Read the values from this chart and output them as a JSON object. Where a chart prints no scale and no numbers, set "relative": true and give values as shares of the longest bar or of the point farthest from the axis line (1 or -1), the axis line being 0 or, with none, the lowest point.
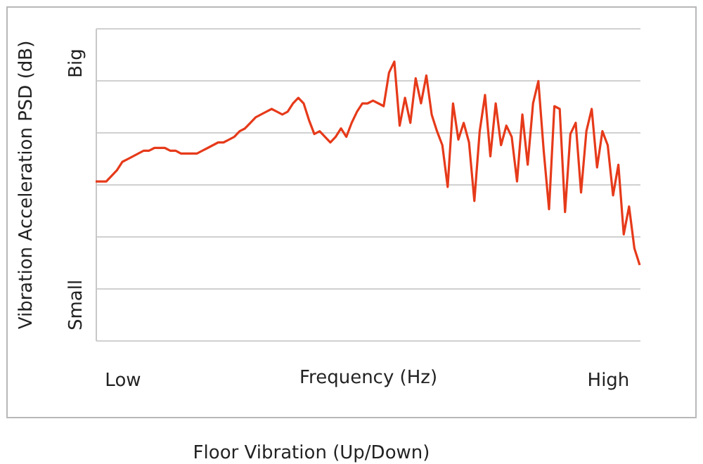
{
  "chart_data": {
    "type": "line",
    "relative": true,
    "xlabel": "Frequency (Hz)",
    "ylabel": "Vibration Acceleration PSD (dB)",
    "categories": [
      null,
      null,
      null,
      null,
      null,
      "Low",
      null,
      null,
      null,
      null,
      null,
      null,
      null,
      null,
      null,
      null,
      null,
      null,
      null,
      null,
      null,
      null,
      null,
      null,
      null,
      null,
      null,
      null,
      null,
      null,
      null,
      null,
      null,
      null,
      null,
      null,
      null,
      null,
      null,
      null,
      null,
      null,
      null,
      null,
      null,
      null,
      null,
      null,
      null,
      null,
      null,
      null,
      null,
      null,
      null,
      null,
      null,
      null,
      null,
      null,
      null,
      null,
      null,
      null,
      null,
      null,
      null,
      null,
      null,
      null,
      null,
      null,
      null,
      null,
      null,
      null,
      null,
      null,
      null,
      null,
      null,
      null,
      null,
      null,
      null,
      null,
      null,
      null,
      null,
      null,
      null,
      null,
      null,
      null,
      null,
      null,
      "High",
      null,
      null,
      null,
      null,
      null,
      null
    ],
    "annotations": [
      "Big",
      "Small",
      "Floor Vibration (Up/Down)"
    ],
    "grid": "y",
    "legend": false,
    "marker": "none",
    "line_style": "solid",
    "series": [
      {
        "color": "#e63a1a",
        "values": [
          0.57,
          0.57,
          0.57,
          0.59,
          0.61,
          0.64,
          0.65,
          0.66,
          0.67,
          0.68,
          0.68,
          0.69,
          0.69,
          0.69,
          0.68,
          0.68,
          0.67,
          0.67,
          0.67,
          0.67,
          0.68,
          0.69,
          0.7,
          0.71,
          0.71,
          0.72,
          0.73,
          0.75,
          0.76,
          0.78,
          0.8,
          0.81,
          0.82,
          0.83,
          0.82,
          0.81,
          0.82,
          0.85,
          0.87,
          0.85,
          0.79,
          0.74,
          0.75,
          0.73,
          0.71,
          0.73,
          0.76,
          0.73,
          0.78,
          0.82,
          0.85,
          0.85,
          0.86,
          0.85,
          0.84,
          0.96,
          1.0,
          0.77,
          0.87,
          0.78,
          0.94,
          0.85,
          0.95,
          0.81,
          0.75,
          0.7,
          0.55,
          0.85,
          0.72,
          0.78,
          0.71,
          0.5,
          0.75,
          0.88,
          0.66,
          0.85,
          0.7,
          0.77,
          0.73,
          0.57,
          0.81,
          0.63,
          0.85,
          0.93,
          0.68,
          0.47,
          0.84,
          0.83,
          0.46,
          0.74,
          0.78,
          0.53,
          0.75,
          0.83,
          0.62,
          0.75,
          0.7,
          0.52,
          0.63,
          0.38,
          0.48,
          0.33,
          0.27
        ]
      }
    ]
  }
}
